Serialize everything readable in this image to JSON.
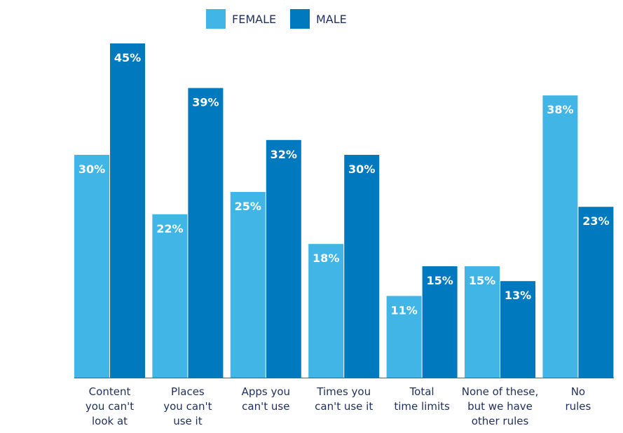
{
  "colors": {
    "female": "#41b6e6",
    "male": "#0079bf",
    "label_text": "#1f2f5c",
    "value_text": "#ffffff"
  },
  "legend": {
    "position": "top-center"
  },
  "chart_data": {
    "type": "bar",
    "categories": [
      [
        "Content",
        "you can't",
        "look at"
      ],
      [
        "Places",
        "you can't",
        "use it"
      ],
      [
        "Apps you",
        "can't use"
      ],
      [
        "Times you",
        "can't use it"
      ],
      [
        "Total",
        "time limits"
      ],
      [
        "None of these,",
        "but we have",
        "other rules"
      ],
      [
        "No",
        "rules"
      ]
    ],
    "series": [
      {
        "name": "FEMALE",
        "values": [
          30,
          22,
          25,
          18,
          11,
          15,
          38
        ],
        "labels": [
          "30%",
          "22%",
          "25%",
          "18%",
          "11%",
          "15%",
          "38%"
        ]
      },
      {
        "name": "MALE",
        "values": [
          45,
          39,
          32,
          30,
          15,
          13,
          23
        ],
        "labels": [
          "45%",
          "39%",
          "32%",
          "30%",
          "15%",
          "13%",
          "23%"
        ]
      }
    ],
    "value_suffix": "%",
    "ylim": [
      0,
      45
    ],
    "grid": false
  }
}
